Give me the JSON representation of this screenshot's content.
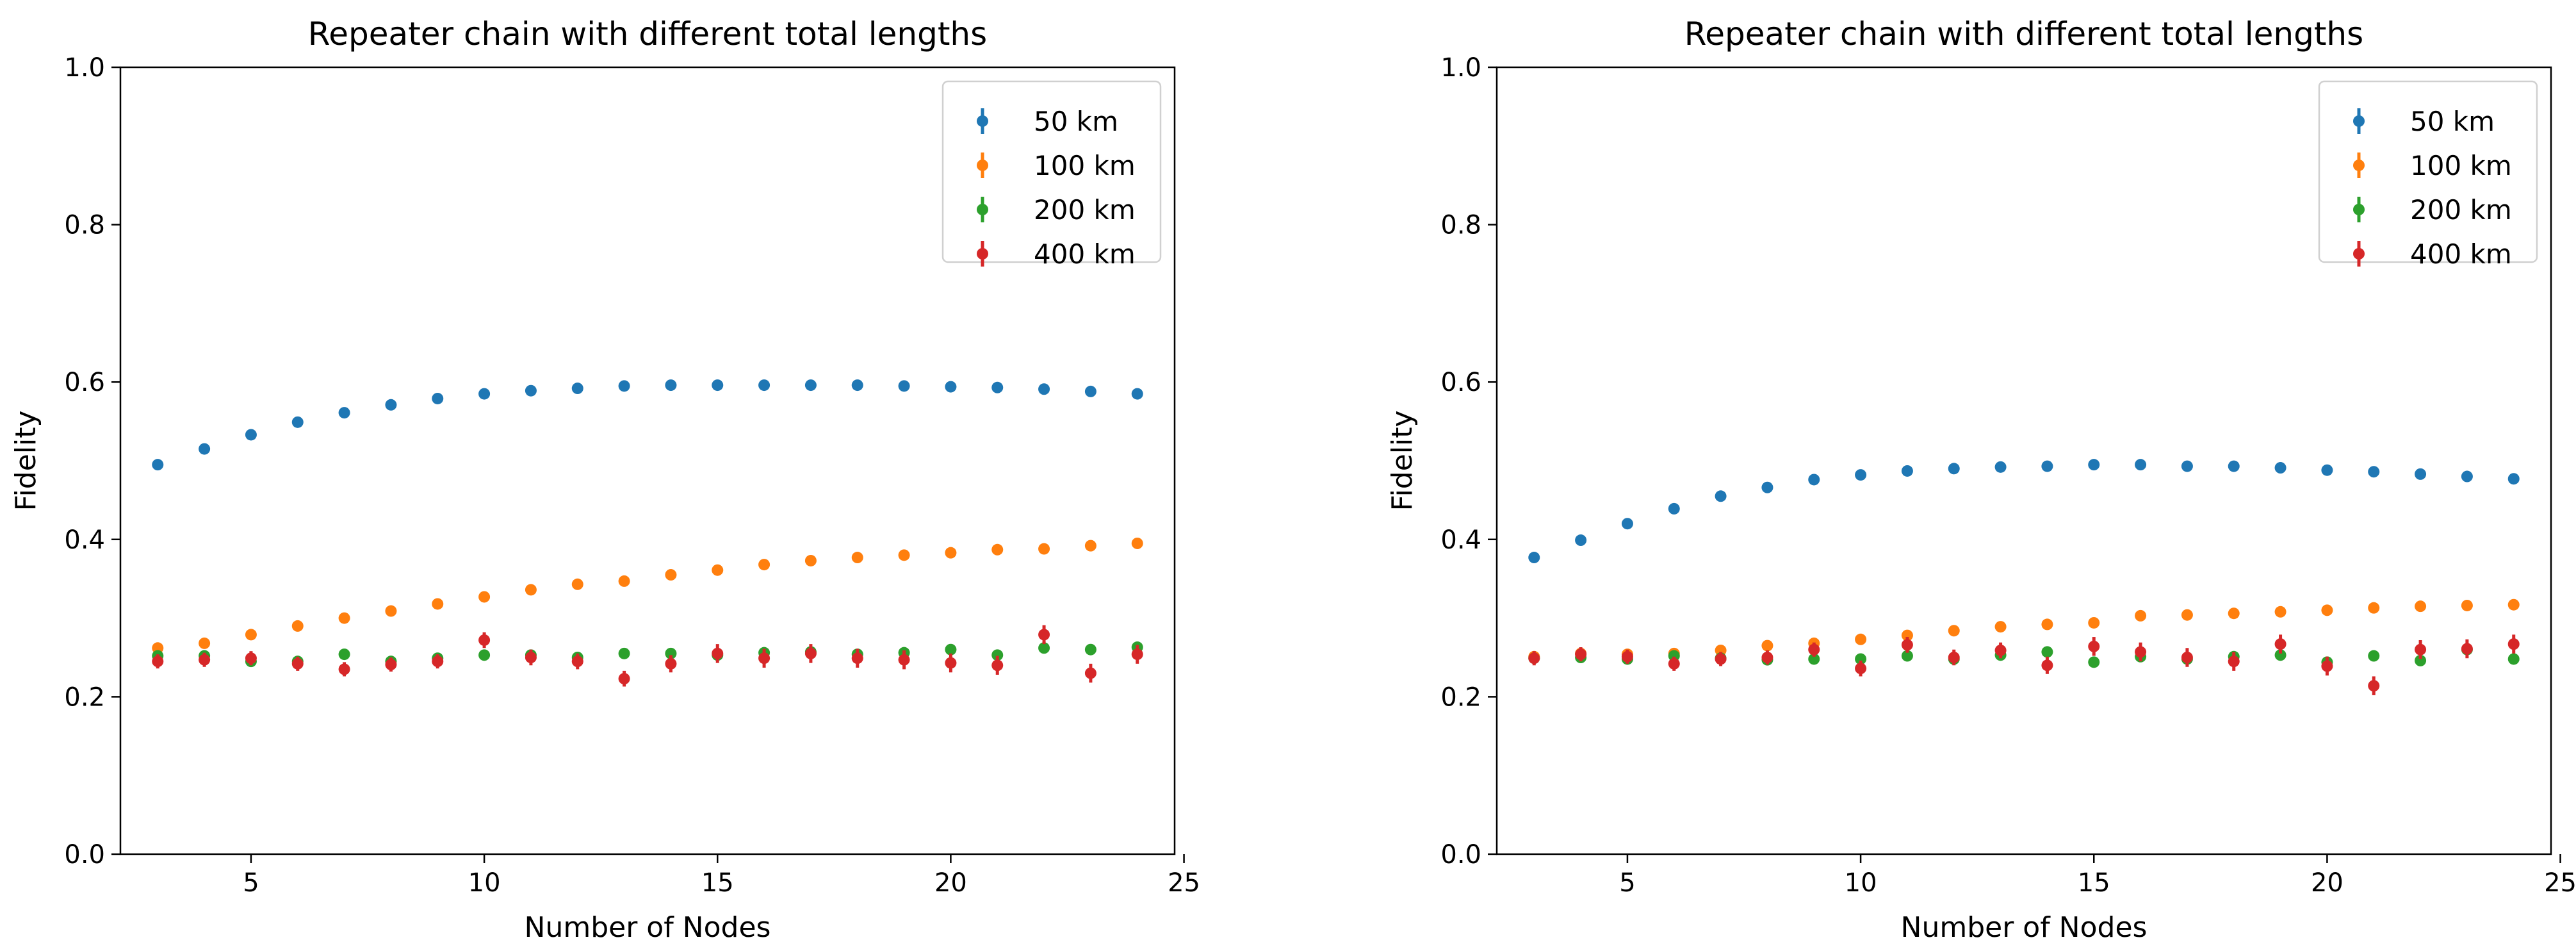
{
  "chart_data": [
    {
      "type": "scatter",
      "title": "Repeater chain with different total lengths",
      "xlabel": "Number of Nodes",
      "ylabel": "Fidelity",
      "xlim": [
        2.2,
        24.8
      ],
      "ylim": [
        0.0,
        1.0
      ],
      "xticks": [
        5,
        10,
        15,
        20,
        25
      ],
      "yticks": [
        0.0,
        0.2,
        0.4,
        0.6,
        0.8,
        1.0
      ],
      "grid": false,
      "legend_position": "top-right",
      "x": [
        3,
        4,
        5,
        6,
        7,
        8,
        9,
        10,
        11,
        12,
        13,
        14,
        15,
        16,
        17,
        18,
        19,
        20,
        21,
        22,
        23,
        24
      ],
      "series": [
        {
          "name": "50 km",
          "color": "#1f77b4",
          "values": [
            0.495,
            0.515,
            0.533,
            0.549,
            0.561,
            0.571,
            0.579,
            0.585,
            0.589,
            0.592,
            0.595,
            0.596,
            0.596,
            0.596,
            0.596,
            0.596,
            0.595,
            0.594,
            0.593,
            0.591,
            0.588,
            0.585
          ],
          "errors": [
            0.004,
            0.004,
            0.004,
            0.004,
            0.004,
            0.004,
            0.004,
            0.004,
            0.004,
            0.004,
            0.004,
            0.004,
            0.004,
            0.004,
            0.004,
            0.004,
            0.004,
            0.004,
            0.004,
            0.004,
            0.004,
            0.004
          ]
        },
        {
          "name": "100 km",
          "color": "#ff7f0e",
          "values": [
            0.262,
            0.268,
            0.279,
            0.29,
            0.3,
            0.309,
            0.318,
            0.327,
            0.336,
            0.343,
            0.347,
            0.355,
            0.361,
            0.368,
            0.373,
            0.377,
            0.38,
            0.383,
            0.387,
            0.388,
            0.392,
            0.395
          ],
          "errors": [
            0.004,
            0.004,
            0.004,
            0.004,
            0.004,
            0.004,
            0.004,
            0.004,
            0.004,
            0.004,
            0.004,
            0.004,
            0.004,
            0.004,
            0.004,
            0.004,
            0.004,
            0.004,
            0.004,
            0.004,
            0.004,
            0.004
          ]
        },
        {
          "name": "200 km",
          "color": "#2ca02c",
          "values": [
            0.252,
            0.252,
            0.245,
            0.245,
            0.254,
            0.245,
            0.249,
            0.253,
            0.253,
            0.25,
            0.255,
            0.255,
            0.253,
            0.256,
            0.257,
            0.254,
            0.256,
            0.26,
            0.253,
            0.262,
            0.26,
            0.263
          ],
          "errors": [
            0.004,
            0.004,
            0.004,
            0.004,
            0.004,
            0.004,
            0.004,
            0.004,
            0.004,
            0.004,
            0.004,
            0.004,
            0.004,
            0.004,
            0.004,
            0.004,
            0.004,
            0.004,
            0.004,
            0.004,
            0.004,
            0.004
          ]
        },
        {
          "name": "400 km",
          "color": "#d62728",
          "values": [
            0.245,
            0.247,
            0.249,
            0.242,
            0.235,
            0.241,
            0.245,
            0.272,
            0.25,
            0.245,
            0.223,
            0.242,
            0.255,
            0.249,
            0.255,
            0.249,
            0.247,
            0.243,
            0.24,
            0.279,
            0.23,
            0.254
          ],
          "errors": [
            0.009,
            0.009,
            0.009,
            0.009,
            0.009,
            0.009,
            0.009,
            0.01,
            0.01,
            0.01,
            0.01,
            0.011,
            0.012,
            0.012,
            0.012,
            0.012,
            0.012,
            0.012,
            0.012,
            0.012,
            0.012,
            0.012
          ]
        }
      ]
    },
    {
      "type": "scatter",
      "title": "Repeater chain with different total lengths",
      "xlabel": "Number of Nodes",
      "ylabel": "Fidelity",
      "xlim": [
        2.2,
        24.8
      ],
      "ylim": [
        0.0,
        1.0
      ],
      "xticks": [
        5,
        10,
        15,
        20,
        25
      ],
      "yticks": [
        0.0,
        0.2,
        0.4,
        0.6,
        0.8,
        1.0
      ],
      "grid": false,
      "legend_position": "top-right",
      "x": [
        3,
        4,
        5,
        6,
        7,
        8,
        9,
        10,
        11,
        12,
        13,
        14,
        15,
        16,
        17,
        18,
        19,
        20,
        21,
        22,
        23,
        24
      ],
      "series": [
        {
          "name": "50 km",
          "color": "#1f77b4",
          "values": [
            0.377,
            0.399,
            0.42,
            0.439,
            0.455,
            0.466,
            0.476,
            0.482,
            0.487,
            0.49,
            0.492,
            0.493,
            0.495,
            0.495,
            0.493,
            0.493,
            0.491,
            0.488,
            0.486,
            0.483,
            0.48,
            0.477
          ],
          "errors": [
            0.004,
            0.004,
            0.004,
            0.004,
            0.004,
            0.004,
            0.004,
            0.004,
            0.004,
            0.004,
            0.004,
            0.004,
            0.004,
            0.004,
            0.004,
            0.004,
            0.004,
            0.004,
            0.004,
            0.004,
            0.004,
            0.004
          ]
        },
        {
          "name": "100 km",
          "color": "#ff7f0e",
          "values": [
            0.251,
            0.255,
            0.254,
            0.255,
            0.259,
            0.265,
            0.268,
            0.273,
            0.278,
            0.284,
            0.289,
            0.292,
            0.294,
            0.303,
            0.304,
            0.306,
            0.308,
            0.31,
            0.313,
            0.315,
            0.316,
            0.317
          ],
          "errors": [
            0.004,
            0.004,
            0.004,
            0.004,
            0.004,
            0.004,
            0.004,
            0.004,
            0.004,
            0.004,
            0.004,
            0.004,
            0.004,
            0.004,
            0.004,
            0.004,
            0.004,
            0.004,
            0.004,
            0.004,
            0.004,
            0.004
          ]
        },
        {
          "name": "200 km",
          "color": "#2ca02c",
          "values": [
            0.249,
            0.25,
            0.248,
            0.252,
            0.249,
            0.247,
            0.248,
            0.248,
            0.252,
            0.248,
            0.253,
            0.257,
            0.244,
            0.251,
            0.248,
            0.251,
            0.253,
            0.244,
            0.252,
            0.246,
            0.26,
            0.248
          ],
          "errors": [
            0.004,
            0.004,
            0.004,
            0.004,
            0.004,
            0.004,
            0.004,
            0.004,
            0.004,
            0.004,
            0.004,
            0.004,
            0.004,
            0.004,
            0.004,
            0.004,
            0.004,
            0.004,
            0.004,
            0.004,
            0.004,
            0.004
          ]
        },
        {
          "name": "400 km",
          "color": "#d62728",
          "values": [
            0.249,
            0.254,
            0.251,
            0.242,
            0.248,
            0.25,
            0.26,
            0.236,
            0.266,
            0.25,
            0.259,
            0.24,
            0.264,
            0.257,
            0.25,
            0.245,
            0.267,
            0.239,
            0.214,
            0.26,
            0.261,
            0.267
          ],
          "errors": [
            0.009,
            0.009,
            0.009,
            0.009,
            0.009,
            0.009,
            0.009,
            0.01,
            0.01,
            0.01,
            0.01,
            0.011,
            0.012,
            0.012,
            0.012,
            0.012,
            0.012,
            0.012,
            0.012,
            0.012,
            0.012,
            0.012
          ]
        }
      ]
    }
  ]
}
